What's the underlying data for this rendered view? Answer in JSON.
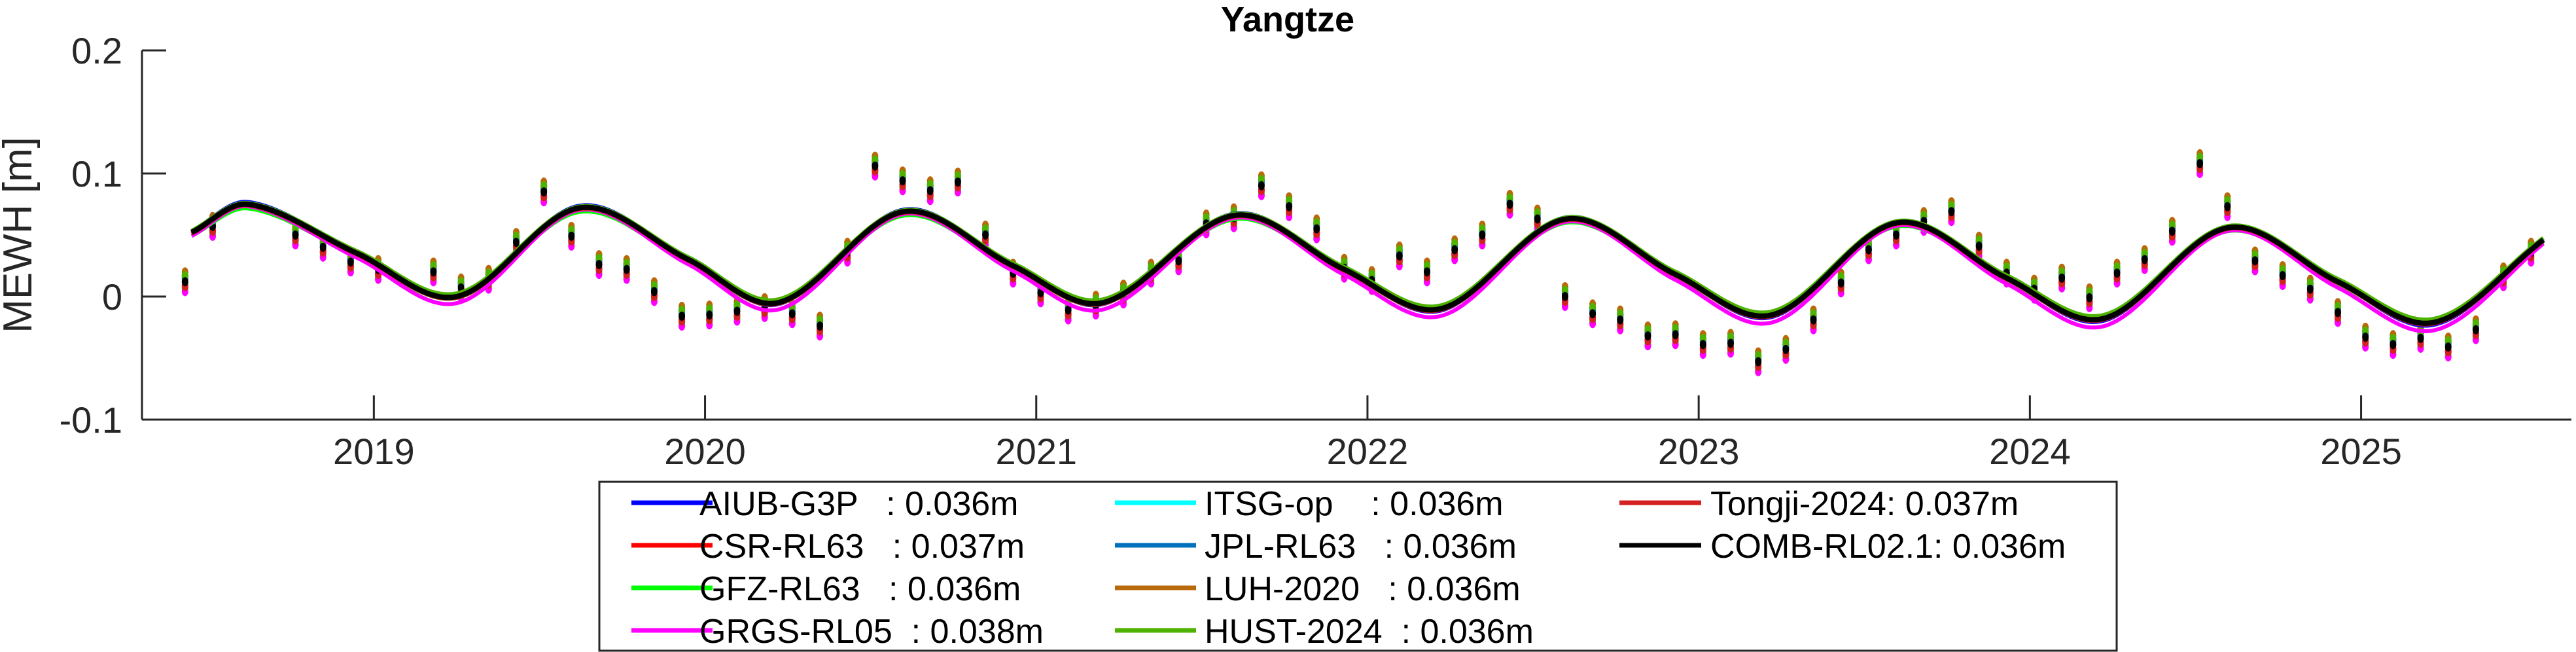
{
  "chart_data": {
    "type": "line",
    "title": "Yangtze",
    "xlabel": "",
    "ylabel": "MEWH [m]",
    "xlim": [
      2018.3,
      2025.635
    ],
    "ylim": [
      -0.1,
      0.2
    ],
    "yticks": [
      -0.1,
      0,
      0.1,
      0.2
    ],
    "ytick_labels": [
      "-0.1",
      "0",
      "0.1",
      "0.2"
    ],
    "xticks": [
      2019,
      2020,
      2021,
      2022,
      2023,
      2024,
      2025
    ],
    "xtick_labels": [
      "2019",
      "2020",
      "2021",
      "2022",
      "2023",
      "2024",
      "2025"
    ],
    "grid": false,
    "legend_placement": "bottom-outside",
    "points_start_year": 2018.43,
    "points_step_years": 0.08333,
    "comb_monthly_points": [
      0.012,
      0.057,
      null,
      null,
      0.05,
      0.04,
      0.028,
      0.022,
      null,
      0.02,
      0.007,
      0.014,
      0.044,
      0.085,
      0.049,
      0.026,
      0.022,
      0.004,
      -0.016,
      -0.015,
      -0.012,
      -0.009,
      -0.014,
      -0.024,
      0.036,
      0.106,
      0.094,
      0.086,
      0.093,
      0.05,
      0.019,
      0.003,
      -0.011,
      -0.007,
      0.002,
      0.019,
      0.029,
      0.059,
      0.064,
      0.09,
      0.073,
      0.055,
      0.023,
      0.013,
      0.033,
      0.02,
      0.038,
      0.05,
      0.075,
      0.063,
      0.0,
      -0.014,
      -0.019,
      -0.032,
      -0.031,
      -0.039,
      -0.038,
      -0.053,
      -0.043,
      -0.019,
      0.011,
      0.038,
      0.05,
      0.061,
      0.069,
      0.041,
      0.019,
      0.006,
      0.015,
      -0.001,
      0.019,
      0.03,
      0.053,
      0.108,
      0.073,
      0.029,
      0.017,
      0.006,
      -0.013,
      -0.033,
      -0.039,
      -0.034,
      -0.041,
      -0.027,
      0.016,
      0.036
    ],
    "comb_fitted_curve_keyframes": [
      [
        2018.45,
        0.052
      ],
      [
        2018.62,
        0.075
      ],
      [
        2018.95,
        0.035
      ],
      [
        2019.25,
        0.0
      ],
      [
        2019.62,
        0.072
      ],
      [
        2019.95,
        0.03
      ],
      [
        2020.22,
        -0.005
      ],
      [
        2020.6,
        0.069
      ],
      [
        2020.93,
        0.025
      ],
      [
        2021.2,
        -0.005
      ],
      [
        2021.6,
        0.066
      ],
      [
        2021.93,
        0.022
      ],
      [
        2022.22,
        -0.01
      ],
      [
        2022.6,
        0.063
      ],
      [
        2022.93,
        0.018
      ],
      [
        2023.22,
        -0.015
      ],
      [
        2023.6,
        0.06
      ],
      [
        2023.93,
        0.015
      ],
      [
        2024.22,
        -0.018
      ],
      [
        2024.6,
        0.056
      ],
      [
        2024.93,
        0.012
      ],
      [
        2025.22,
        -0.021
      ],
      [
        2025.55,
        0.046
      ]
    ],
    "series": [
      {
        "name": "AIUB-G3P",
        "rms_label": "AIUB-G3P   : 0.036m",
        "rms": 0.036,
        "color": "#0000ff",
        "amp_scale": 1.04,
        "offset": 0.0,
        "point_bias": 0.004
      },
      {
        "name": "CSR-RL63",
        "rms_label": "CSR-RL63   : 0.037m",
        "rms": 0.037,
        "color": "#ff0000",
        "amp_scale": 1.0,
        "offset": -0.001,
        "point_bias": -0.003
      },
      {
        "name": "GFZ-RL63",
        "rms_label": "GFZ-RL63   : 0.036m",
        "rms": 0.036,
        "color": "#00ff00",
        "amp_scale": 0.97,
        "offset": -0.002,
        "point_bias": -0.006
      },
      {
        "name": "GRGS-RL05",
        "rms_label": "GRGS-RL05  : 0.038m",
        "rms": 0.038,
        "color": "#ff00ff",
        "amp_scale": 1.05,
        "offset": -0.004,
        "point_bias": -0.008
      },
      {
        "name": "ITSG-op",
        "rms_label": "ITSG-op    : 0.036m",
        "rms": 0.036,
        "color": "#00ffff",
        "amp_scale": 0.97,
        "offset": 0.001,
        "point_bias": 0.006
      },
      {
        "name": "JPL-RL63",
        "rms_label": "JPL-RL63   : 0.036m",
        "rms": 0.036,
        "color": "#0072bd",
        "amp_scale": 1.0,
        "offset": 0.0,
        "point_bias": 0.002
      },
      {
        "name": "LUH-2020",
        "rms_label": "LUH-2020   : 0.036m",
        "rms": 0.036,
        "color": "#b8690a",
        "amp_scale": 1.0,
        "offset": 0.0,
        "point_bias": 0.008
      },
      {
        "name": "HUST-2024",
        "rms_label": "HUST-2024  : 0.036m",
        "rms": 0.036,
        "color": "#4db300",
        "amp_scale": 0.98,
        "offset": 0.002,
        "point_bias": 0.005
      },
      {
        "name": "Tongji-2024",
        "rms_label": "Tongji-2024: 0.037m",
        "rms": 0.037,
        "color": "#d42020",
        "amp_scale": 1.0,
        "offset": -0.001,
        "point_bias": -0.004
      },
      {
        "name": "COMB-RL02.1",
        "rms_label": "COMB-RL02.1: 0.036m",
        "rms": 0.036,
        "color": "#000000",
        "amp_scale": 1.0,
        "offset": 0.0,
        "point_bias": 0.0
      }
    ]
  }
}
